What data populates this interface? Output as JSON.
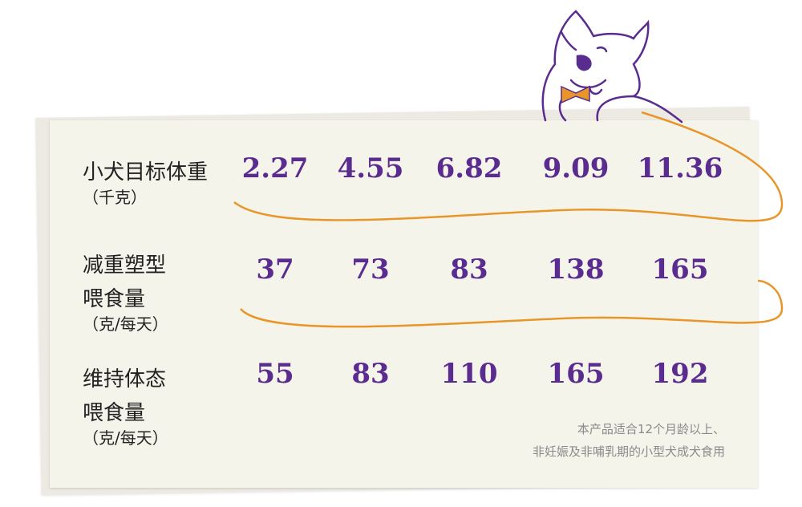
{
  "table": {
    "rows": [
      {
        "label": [
          "小犬目标体重",
          "（千克）"
        ],
        "values": [
          2.27,
          4.55,
          6.82,
          9.09,
          11.36
        ]
      },
      {
        "label": [
          "减重塑型",
          "喂食量",
          "（克/每天）"
        ],
        "values": [
          37,
          73,
          83,
          138,
          165
        ]
      },
      {
        "label": [
          "维持体态",
          "喂食量",
          "（克/每天）"
        ],
        "values": [
          55,
          83,
          110,
          165,
          192
        ]
      }
    ]
  },
  "note": [
    "本产品适合12个月龄以上、",
    "非妊娠及非哺乳期的小型犬成犬食用"
  ]
}
